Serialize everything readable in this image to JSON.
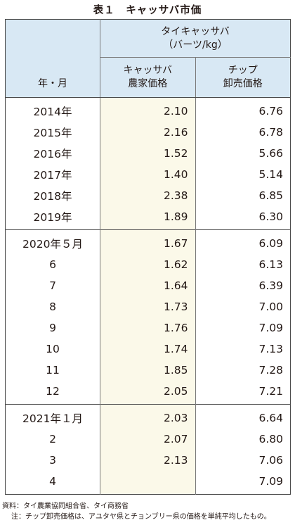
{
  "title": "表１　キャッサバ市価",
  "header": {
    "group_line1": "タイキャッサバ",
    "group_line2": "（バーツ/kg）",
    "col_year": "年・月",
    "col_farm_line1": "キャッサバ",
    "col_farm_line2": "農家価格",
    "col_chip_line1": "チップ",
    "col_chip_line2": "卸売価格"
  },
  "groups": [
    {
      "rows": [
        {
          "label": "2014年",
          "farm": "2.10",
          "chip": "6.76"
        },
        {
          "label": "2015年",
          "farm": "2.16",
          "chip": "6.78"
        },
        {
          "label": "2016年",
          "farm": "1.52",
          "chip": "5.66"
        },
        {
          "label": "2017年",
          "farm": "1.40",
          "chip": "5.14"
        },
        {
          "label": "2018年",
          "farm": "2.38",
          "chip": "6.85"
        },
        {
          "label": "2019年",
          "farm": "1.89",
          "chip": "6.30"
        }
      ]
    },
    {
      "rows": [
        {
          "label": "2020年５月",
          "farm": "1.67",
          "chip": "6.09"
        },
        {
          "label": "6",
          "farm": "1.62",
          "chip": "6.13"
        },
        {
          "label": "7",
          "farm": "1.64",
          "chip": "6.39"
        },
        {
          "label": "8",
          "farm": "1.73",
          "chip": "7.00"
        },
        {
          "label": "9",
          "farm": "1.76",
          "chip": "7.09"
        },
        {
          "label": "10",
          "farm": "1.74",
          "chip": "7.13"
        },
        {
          "label": "11",
          "farm": "1.85",
          "chip": "7.28"
        },
        {
          "label": "12",
          "farm": "2.05",
          "chip": "7.21"
        }
      ]
    },
    {
      "rows": [
        {
          "label": "2021年１月",
          "farm": "2.03",
          "chip": "6.64"
        },
        {
          "label": "2",
          "farm": "2.07",
          "chip": "6.80"
        },
        {
          "label": "3",
          "farm": "2.13",
          "chip": "7.06"
        },
        {
          "label": "4",
          "farm": "",
          "chip": "7.09"
        }
      ]
    }
  ],
  "notes": {
    "source": "資料：タイ農業協同組合省、タイ商務省",
    "note": "注：チップ卸売価格は、アユタヤ県とチョンブリー県の価格を単純平均したもの。"
  }
}
